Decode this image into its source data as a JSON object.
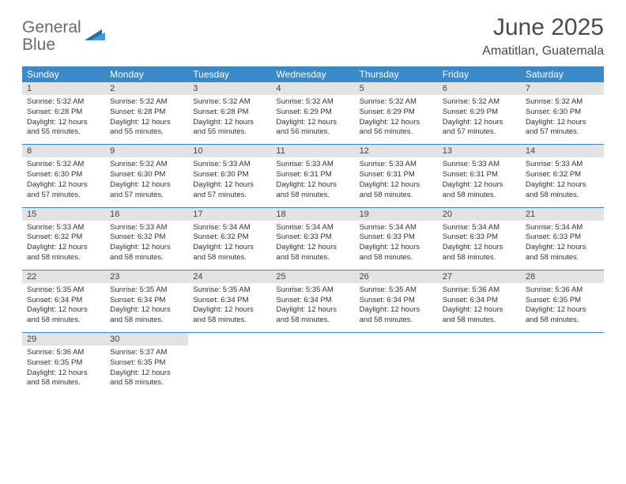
{
  "logo": {
    "line1": "General",
    "line2": "Blue"
  },
  "title": "June 2025",
  "location": "Amatitlan, Guatemala",
  "colors": {
    "header_bg": "#3a89c9",
    "header_fg": "#ffffff",
    "daynum_bg": "#e3e3e3",
    "rule": "#3a89c9",
    "logo_gray": "#6a6a6a",
    "logo_blue": "#3a7fc4"
  },
  "daysOfWeek": [
    "Sunday",
    "Monday",
    "Tuesday",
    "Wednesday",
    "Thursday",
    "Friday",
    "Saturday"
  ],
  "weeks": [
    [
      {
        "n": "1",
        "sr": "5:32 AM",
        "ss": "6:28 PM",
        "dl": "12 hours and 55 minutes."
      },
      {
        "n": "2",
        "sr": "5:32 AM",
        "ss": "6:28 PM",
        "dl": "12 hours and 55 minutes."
      },
      {
        "n": "3",
        "sr": "5:32 AM",
        "ss": "6:28 PM",
        "dl": "12 hours and 55 minutes."
      },
      {
        "n": "4",
        "sr": "5:32 AM",
        "ss": "6:29 PM",
        "dl": "12 hours and 56 minutes."
      },
      {
        "n": "5",
        "sr": "5:32 AM",
        "ss": "6:29 PM",
        "dl": "12 hours and 56 minutes."
      },
      {
        "n": "6",
        "sr": "5:32 AM",
        "ss": "6:29 PM",
        "dl": "12 hours and 57 minutes."
      },
      {
        "n": "7",
        "sr": "5:32 AM",
        "ss": "6:30 PM",
        "dl": "12 hours and 57 minutes."
      }
    ],
    [
      {
        "n": "8",
        "sr": "5:32 AM",
        "ss": "6:30 PM",
        "dl": "12 hours and 57 minutes."
      },
      {
        "n": "9",
        "sr": "5:32 AM",
        "ss": "6:30 PM",
        "dl": "12 hours and 57 minutes."
      },
      {
        "n": "10",
        "sr": "5:33 AM",
        "ss": "6:30 PM",
        "dl": "12 hours and 57 minutes."
      },
      {
        "n": "11",
        "sr": "5:33 AM",
        "ss": "6:31 PM",
        "dl": "12 hours and 58 minutes."
      },
      {
        "n": "12",
        "sr": "5:33 AM",
        "ss": "6:31 PM",
        "dl": "12 hours and 58 minutes."
      },
      {
        "n": "13",
        "sr": "5:33 AM",
        "ss": "6:31 PM",
        "dl": "12 hours and 58 minutes."
      },
      {
        "n": "14",
        "sr": "5:33 AM",
        "ss": "6:32 PM",
        "dl": "12 hours and 58 minutes."
      }
    ],
    [
      {
        "n": "15",
        "sr": "5:33 AM",
        "ss": "6:32 PM",
        "dl": "12 hours and 58 minutes."
      },
      {
        "n": "16",
        "sr": "5:33 AM",
        "ss": "6:32 PM",
        "dl": "12 hours and 58 minutes."
      },
      {
        "n": "17",
        "sr": "5:34 AM",
        "ss": "6:32 PM",
        "dl": "12 hours and 58 minutes."
      },
      {
        "n": "18",
        "sr": "5:34 AM",
        "ss": "6:33 PM",
        "dl": "12 hours and 58 minutes."
      },
      {
        "n": "19",
        "sr": "5:34 AM",
        "ss": "6:33 PM",
        "dl": "12 hours and 58 minutes."
      },
      {
        "n": "20",
        "sr": "5:34 AM",
        "ss": "6:33 PM",
        "dl": "12 hours and 58 minutes."
      },
      {
        "n": "21",
        "sr": "5:34 AM",
        "ss": "6:33 PM",
        "dl": "12 hours and 58 minutes."
      }
    ],
    [
      {
        "n": "22",
        "sr": "5:35 AM",
        "ss": "6:34 PM",
        "dl": "12 hours and 58 minutes."
      },
      {
        "n": "23",
        "sr": "5:35 AM",
        "ss": "6:34 PM",
        "dl": "12 hours and 58 minutes."
      },
      {
        "n": "24",
        "sr": "5:35 AM",
        "ss": "6:34 PM",
        "dl": "12 hours and 58 minutes."
      },
      {
        "n": "25",
        "sr": "5:35 AM",
        "ss": "6:34 PM",
        "dl": "12 hours and 58 minutes."
      },
      {
        "n": "26",
        "sr": "5:35 AM",
        "ss": "6:34 PM",
        "dl": "12 hours and 58 minutes."
      },
      {
        "n": "27",
        "sr": "5:36 AM",
        "ss": "6:34 PM",
        "dl": "12 hours and 58 minutes."
      },
      {
        "n": "28",
        "sr": "5:36 AM",
        "ss": "6:35 PM",
        "dl": "12 hours and 58 minutes."
      }
    ],
    [
      {
        "n": "29",
        "sr": "5:36 AM",
        "ss": "6:35 PM",
        "dl": "12 hours and 58 minutes."
      },
      {
        "n": "30",
        "sr": "5:37 AM",
        "ss": "6:35 PM",
        "dl": "12 hours and 58 minutes."
      },
      null,
      null,
      null,
      null,
      null
    ]
  ],
  "labels": {
    "sunrise": "Sunrise:",
    "sunset": "Sunset:",
    "daylight": "Daylight:"
  }
}
